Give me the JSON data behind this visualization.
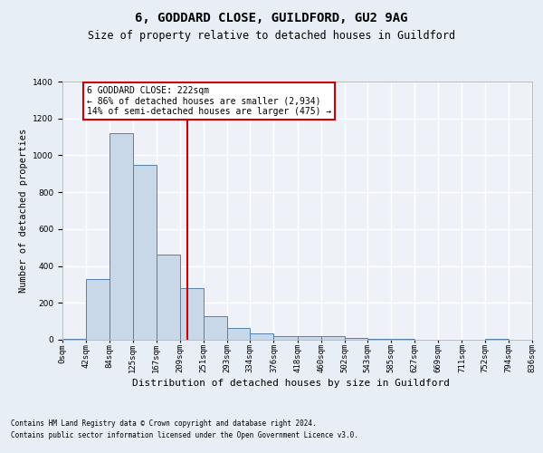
{
  "title1": "6, GODDARD CLOSE, GUILDFORD, GU2 9AG",
  "title2": "Size of property relative to detached houses in Guildford",
  "xlabel": "Distribution of detached houses by size in Guildford",
  "ylabel": "Number of detached properties",
  "footnote1": "Contains HM Land Registry data © Crown copyright and database right 2024.",
  "footnote2": "Contains public sector information licensed under the Open Government Licence v3.0.",
  "annotation_line1": "6 GODDARD CLOSE: 222sqm",
  "annotation_line2": "← 86% of detached houses are smaller (2,934)",
  "annotation_line3": "14% of semi-detached houses are larger (475) →",
  "bar_left_edges": [
    0,
    42,
    84,
    125,
    167,
    209,
    251,
    293,
    334,
    376,
    418,
    460,
    502,
    543,
    585,
    627,
    669,
    711,
    752,
    794
  ],
  "bar_widths": [
    42,
    42,
    41,
    42,
    42,
    42,
    42,
    41,
    42,
    42,
    42,
    42,
    41,
    42,
    42,
    42,
    42,
    41,
    42,
    42
  ],
  "bar_heights": [
    5,
    330,
    1120,
    950,
    460,
    280,
    130,
    65,
    35,
    18,
    20,
    20,
    12,
    5,
    5,
    2,
    2,
    0,
    5,
    0
  ],
  "bar_color": "#c8d8e8",
  "bar_edge_color": "#5580aa",
  "vline_x": 222,
  "vline_color": "#cc0000",
  "ylim": [
    0,
    1400
  ],
  "yticks": [
    0,
    200,
    400,
    600,
    800,
    1000,
    1200,
    1400
  ],
  "xtick_labels": [
    "0sqm",
    "42sqm",
    "84sqm",
    "125sqm",
    "167sqm",
    "209sqm",
    "251sqm",
    "293sqm",
    "334sqm",
    "376sqm",
    "418sqm",
    "460sqm",
    "502sqm",
    "543sqm",
    "585sqm",
    "627sqm",
    "669sqm",
    "711sqm",
    "752sqm",
    "794sqm",
    "836sqm"
  ],
  "bg_color": "#e8eef5",
  "plot_bg_color": "#eef2f8",
  "grid_color": "#ffffff",
  "annotation_box_color": "#ffffff",
  "annotation_box_edge": "#cc0000",
  "title1_fontsize": 10,
  "title2_fontsize": 8.5,
  "ylabel_fontsize": 7.5,
  "xlabel_fontsize": 8,
  "footnote_fontsize": 5.5,
  "tick_fontsize": 6.5,
  "annotation_fontsize": 7
}
